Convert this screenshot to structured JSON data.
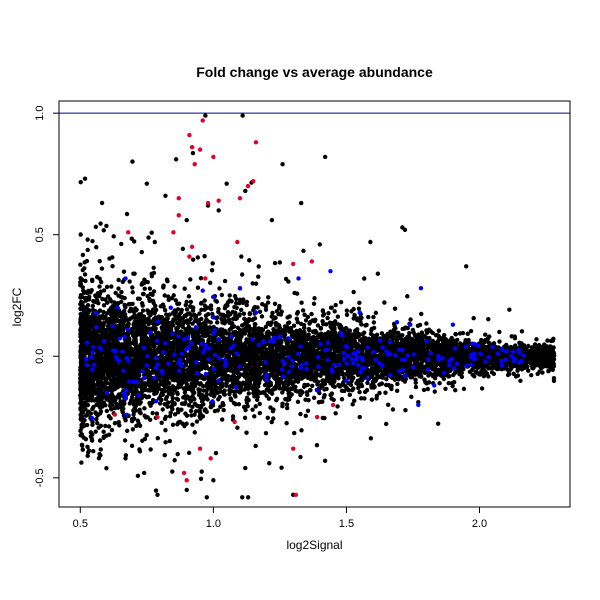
{
  "chart_data": {
    "type": "scatter",
    "title": "Fold change vs average abundance",
    "xlabel": "log2Signal",
    "ylabel": "log2FC",
    "xlim": [
      0.42,
      2.34
    ],
    "ylim": [
      -0.62,
      1.05
    ],
    "x_ticks": [
      "0.5",
      "1.0",
      "1.5",
      "2.0"
    ],
    "y_ticks": [
      "-0.5",
      "0.0",
      "0.5",
      "1.0"
    ],
    "grid": false,
    "legend": "none",
    "reference_line": {
      "y": 1.0,
      "color": "#00008b"
    },
    "series": [
      {
        "color": "#000000",
        "description": "all genes"
      },
      {
        "color": "#0000ff",
        "description": "highlighted genes"
      },
      {
        "color": "#e0002b",
        "description": "significant genes"
      }
    ],
    "points": {
      "black_sample": [
        [
          0.97,
          0.99
        ],
        [
          1.11,
          0.99
        ],
        [
          1.26,
          0.79
        ],
        [
          1.42,
          0.82
        ],
        [
          1.05,
          0.71
        ],
        [
          0.75,
          0.71
        ],
        [
          0.82,
          0.66
        ],
        [
          1.12,
          0.68
        ],
        [
          1.33,
          0.63
        ],
        [
          1.71,
          0.53
        ],
        [
          1.72,
          0.52
        ],
        [
          1.59,
          0.47
        ],
        [
          1.95,
          0.37
        ],
        [
          0.98,
          0.62
        ],
        [
          0.9,
          0.56
        ],
        [
          1.02,
          0.6
        ],
        [
          1.22,
          0.56
        ],
        [
          1.4,
          0.46
        ],
        [
          0.78,
          0.47
        ],
        [
          0.86,
          0.81
        ],
        [
          2.27,
          0.0
        ],
        [
          2.2,
          0.0
        ],
        [
          2.1,
          -0.02
        ],
        [
          2.0,
          0.04
        ],
        [
          1.89,
          -0.06
        ],
        [
          1.3,
          -0.57
        ],
        [
          0.79,
          -0.57
        ],
        [
          0.9,
          -0.55
        ],
        [
          1.0,
          -0.51
        ],
        [
          1.12,
          -0.46
        ],
        [
          1.42,
          -0.43
        ],
        [
          0.74,
          -0.48
        ],
        [
          0.67,
          -0.42
        ],
        [
          1.21,
          -0.44
        ],
        [
          1.55,
          -0.25
        ]
      ],
      "red_sample": [
        [
          0.96,
          0.97
        ],
        [
          0.91,
          0.91
        ],
        [
          0.92,
          0.86
        ],
        [
          1.16,
          0.88
        ],
        [
          0.95,
          0.85
        ],
        [
          1.0,
          0.82
        ],
        [
          0.93,
          0.79
        ],
        [
          1.15,
          0.72
        ],
        [
          1.13,
          0.7
        ],
        [
          0.87,
          0.65
        ],
        [
          0.98,
          0.63
        ],
        [
          1.02,
          0.64
        ],
        [
          1.1,
          0.65
        ],
        [
          0.87,
          0.58
        ],
        [
          0.85,
          0.51
        ],
        [
          0.92,
          0.45
        ],
        [
          1.09,
          0.47
        ],
        [
          0.68,
          0.51
        ],
        [
          0.91,
          0.41
        ],
        [
          1.3,
          0.38
        ],
        [
          0.97,
          0.32
        ],
        [
          1.37,
          0.39
        ],
        [
          0.79,
          -0.25
        ],
        [
          0.63,
          -0.24
        ],
        [
          1.08,
          -0.27
        ],
        [
          1.39,
          -0.25
        ],
        [
          1.45,
          -0.2
        ],
        [
          0.95,
          -0.38
        ],
        [
          1.3,
          -0.38
        ],
        [
          0.89,
          -0.48
        ],
        [
          0.9,
          -0.51
        ],
        [
          0.99,
          -0.42
        ],
        [
          1.31,
          -0.57
        ]
      ],
      "blue_sample": [
        [
          0.56,
          0.12
        ],
        [
          0.64,
          0.2
        ],
        [
          0.67,
          0.32
        ],
        [
          0.84,
          0.2
        ],
        [
          0.96,
          0.27
        ],
        [
          1.0,
          0.16
        ],
        [
          1.1,
          0.28
        ],
        [
          1.16,
          0.18
        ],
        [
          1.32,
          0.32
        ],
        [
          1.44,
          0.35
        ],
        [
          1.55,
          0.18
        ],
        [
          1.69,
          0.14
        ],
        [
          1.78,
          0.28
        ],
        [
          1.74,
          0.13
        ],
        [
          1.9,
          0.13
        ],
        [
          1.56,
          -0.05
        ],
        [
          1.72,
          -0.08
        ],
        [
          1.83,
          -0.12
        ],
        [
          1.95,
          -0.04
        ],
        [
          2.13,
          -0.02
        ],
        [
          0.6,
          -0.15
        ],
        [
          0.74,
          -0.09
        ],
        [
          0.88,
          -0.04
        ],
        [
          1.02,
          -0.1
        ],
        [
          1.2,
          -0.08
        ],
        [
          1.39,
          -0.14
        ],
        [
          1.5,
          -0.1
        ],
        [
          1.77,
          -0.2
        ],
        [
          0.68,
          -0.02
        ],
        [
          1.65,
          0.02
        ]
      ]
    }
  }
}
